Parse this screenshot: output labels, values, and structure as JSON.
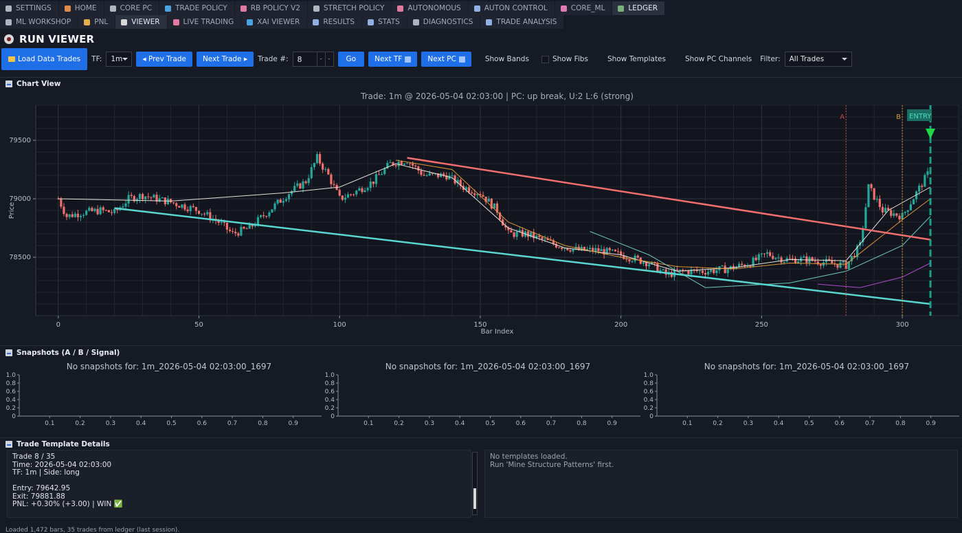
{
  "tabs_row1": [
    {
      "label": "SETTINGS",
      "icon": "gear-icon",
      "color": "#b0b4bf"
    },
    {
      "label": "HOME",
      "icon": "home-icon",
      "color": "#e08a4a"
    },
    {
      "label": "CORE PC",
      "icon": "ruler-icon",
      "color": "#b0b4bf"
    },
    {
      "label": "TRADE POLICY",
      "icon": "shield-icon",
      "color": "#4aa3e0"
    },
    {
      "label": "RB POLICY V2",
      "icon": "rocket-icon",
      "color": "#e07aa0"
    },
    {
      "label": "STRETCH POLICY",
      "icon": "ruler-icon",
      "color": "#b0b4bf"
    },
    {
      "label": "AUTONOMOUS",
      "icon": "robot-icon",
      "color": "#e07aa0"
    },
    {
      "label": "AUTON CONTROL",
      "icon": "grid-icon",
      "color": "#8fb0e0"
    },
    {
      "label": "CORE_ML",
      "icon": "brain-icon",
      "color": "#e07ab0"
    },
    {
      "label": "LEDGER",
      "icon": "ledger-icon",
      "color": "#7ab07a",
      "active": true
    }
  ],
  "tabs_row2": [
    {
      "label": "ML WORKSHOP",
      "icon": "tools-icon",
      "color": "#b0b4bf"
    },
    {
      "label": "PNL",
      "icon": "moneybag-icon",
      "color": "#e0b04a"
    },
    {
      "label": "VIEWER",
      "icon": "eye-icon",
      "color": "#d8d8d8",
      "active": true
    },
    {
      "label": "LIVE TRADING",
      "icon": "rocket-icon",
      "color": "#e07aa0"
    },
    {
      "label": "XAI VIEWER",
      "icon": "magnifier-icon",
      "color": "#4aa3e0"
    },
    {
      "label": "RESULTS",
      "icon": "chart-icon",
      "color": "#8fb0e0"
    },
    {
      "label": "STATS",
      "icon": "chart-icon",
      "color": "#8fb0e0"
    },
    {
      "label": "DIAGNOSTICS",
      "icon": "flask-icon",
      "color": "#b0b4bf"
    },
    {
      "label": "TRADE ANALYSIS",
      "icon": "chart-icon",
      "color": "#8fb0e0"
    }
  ],
  "header": {
    "title": "RUN VIEWER"
  },
  "toolbar": {
    "load_label": "Load Data  Trades",
    "tf_label": "TF:",
    "tf_value": "1m",
    "prev_label": "◂ Prev Trade",
    "next_label": "Next Trade ▸",
    "trade_num_label": "Trade #:",
    "trade_num_value": "8",
    "go_label": "Go",
    "next_tf_label": "Next TF",
    "next_pc_label": "Next PC",
    "show_bands": "Show Bands",
    "show_fibs": "Show Fibs",
    "show_templates": "Show Templates",
    "show_pc_channels": "Show PC Channels",
    "filter_label": "Filter:",
    "filter_value": "All Trades"
  },
  "chart_panel": {
    "title": "Chart View"
  },
  "chart_data": {
    "type": "candlestick",
    "title": "Trade: 1m @ 2026-05-04 02:03:00 | PC: up break, U:2 L:6 (strong)",
    "xlabel": "Bar Index",
    "ylabel": "Price",
    "xlim": [
      -8,
      320
    ],
    "ylim": [
      78000,
      79800
    ],
    "xticks": [
      0,
      50,
      100,
      150,
      200,
      250,
      300
    ],
    "yticks": [
      78500,
      79000,
      79500
    ],
    "grid": true,
    "markers": [
      {
        "label": "A",
        "x": 280,
        "color": "#c0483d"
      },
      {
        "label": "B",
        "x": 300,
        "color": "#d09a2a"
      },
      {
        "label": "ENTRY",
        "x": 310,
        "color": "#1aa08a"
      }
    ],
    "close_path": [
      [
        0,
        79000
      ],
      [
        3,
        78850
      ],
      [
        8,
        78880
      ],
      [
        15,
        78900
      ],
      [
        20,
        78880
      ],
      [
        25,
        79000
      ],
      [
        30,
        79030
      ],
      [
        40,
        78970
      ],
      [
        50,
        78900
      ],
      [
        57,
        78800
      ],
      [
        62,
        78700
      ],
      [
        68,
        78750
      ],
      [
        75,
        78900
      ],
      [
        82,
        79050
      ],
      [
        88,
        79150
      ],
      [
        92,
        79350
      ],
      [
        96,
        79200
      ],
      [
        100,
        79000
      ],
      [
        105,
        79050
      ],
      [
        112,
        79150
      ],
      [
        118,
        79300
      ],
      [
        124,
        79330
      ],
      [
        130,
        79200
      ],
      [
        138,
        79200
      ],
      [
        144,
        79100
      ],
      [
        150,
        79050
      ],
      [
        156,
        78900
      ],
      [
        160,
        78700
      ],
      [
        166,
        78700
      ],
      [
        172,
        78650
      ],
      [
        178,
        78600
      ],
      [
        185,
        78560
      ],
      [
        192,
        78560
      ],
      [
        200,
        78520
      ],
      [
        210,
        78450
      ],
      [
        216,
        78350
      ],
      [
        222,
        78380
      ],
      [
        230,
        78380
      ],
      [
        238,
        78400
      ],
      [
        246,
        78450
      ],
      [
        252,
        78530
      ],
      [
        258,
        78480
      ],
      [
        266,
        78480
      ],
      [
        274,
        78450
      ],
      [
        280,
        78430
      ],
      [
        285,
        78600
      ],
      [
        288,
        79100
      ],
      [
        293,
        78900
      ],
      [
        300,
        78850
      ],
      [
        305,
        79050
      ],
      [
        310,
        79250
      ]
    ],
    "channels": [
      {
        "name": "upper",
        "points": [
          [
            124,
            79350
          ],
          [
            310,
            78650
          ]
        ],
        "color": "#f26e6e"
      },
      {
        "name": "lower",
        "points": [
          [
            20,
            78920
          ],
          [
            310,
            78100
          ]
        ],
        "color": "#5ad6d0"
      }
    ],
    "overlays": [
      {
        "color": "#e8e0d8",
        "points": [
          [
            0,
            79000
          ],
          [
            40,
            78980
          ],
          [
            80,
            79050
          ],
          [
            100,
            79100
          ],
          [
            120,
            79300
          ],
          [
            140,
            79180
          ],
          [
            160,
            78750
          ],
          [
            180,
            78580
          ],
          [
            200,
            78520
          ],
          [
            220,
            78380
          ],
          [
            240,
            78410
          ],
          [
            260,
            78480
          ],
          [
            280,
            78470
          ],
          [
            295,
            78900
          ],
          [
            310,
            79100
          ]
        ]
      },
      {
        "color": "#e0963a",
        "points": [
          [
            120,
            79330
          ],
          [
            140,
            79250
          ],
          [
            160,
            78800
          ],
          [
            180,
            78600
          ],
          [
            200,
            78500
          ],
          [
            220,
            78420
          ],
          [
            240,
            78400
          ],
          [
            260,
            78450
          ],
          [
            280,
            78440
          ],
          [
            300,
            78820
          ],
          [
            310,
            79000
          ]
        ]
      },
      {
        "color": "#6ec8c0",
        "points": [
          [
            189,
            78720
          ],
          [
            210,
            78520
          ],
          [
            230,
            78240
          ],
          [
            260,
            78280
          ],
          [
            280,
            78380
          ],
          [
            300,
            78600
          ],
          [
            310,
            78850
          ]
        ]
      },
      {
        "color": "#b04ad0",
        "points": [
          [
            270,
            78270
          ],
          [
            285,
            78240
          ],
          [
            300,
            78330
          ],
          [
            310,
            78450
          ]
        ]
      }
    ]
  },
  "snapshots": {
    "title": "Snapshots (A / B / Signal)",
    "panels": [
      {
        "message": "No snapshots for: 1m_2026-05-04 02:03:00_1697"
      },
      {
        "message": "No snapshots for: 1m_2026-05-04 02:03:00_1697"
      },
      {
        "message": "No snapshots for: 1m_2026-05-04 02:03:00_1697"
      }
    ],
    "yticks": [
      "1.0",
      "0.8",
      "0.6",
      "0.4",
      "0.2",
      "0"
    ],
    "xticks": [
      "0.1",
      "0.2",
      "0.3",
      "0.4",
      "0.5",
      "0.6",
      "0.7",
      "0.8",
      "0.9"
    ]
  },
  "details": {
    "title": "Trade  Template Details",
    "trade_text": "Trade 8 / 35\nTime: 2026-05-04 02:03:00\nTF: 1m | Side: long\n\nEntry: 79642.95\nExit: 79881.88\nPNL: +0.30% (+3.00) | WIN ✅",
    "template_text": "No templates loaded.\nRun 'Mine Structure Patterns' first."
  },
  "status": {
    "text": "Loaded 1,472 bars, 35 trades from ledger (last session)."
  }
}
